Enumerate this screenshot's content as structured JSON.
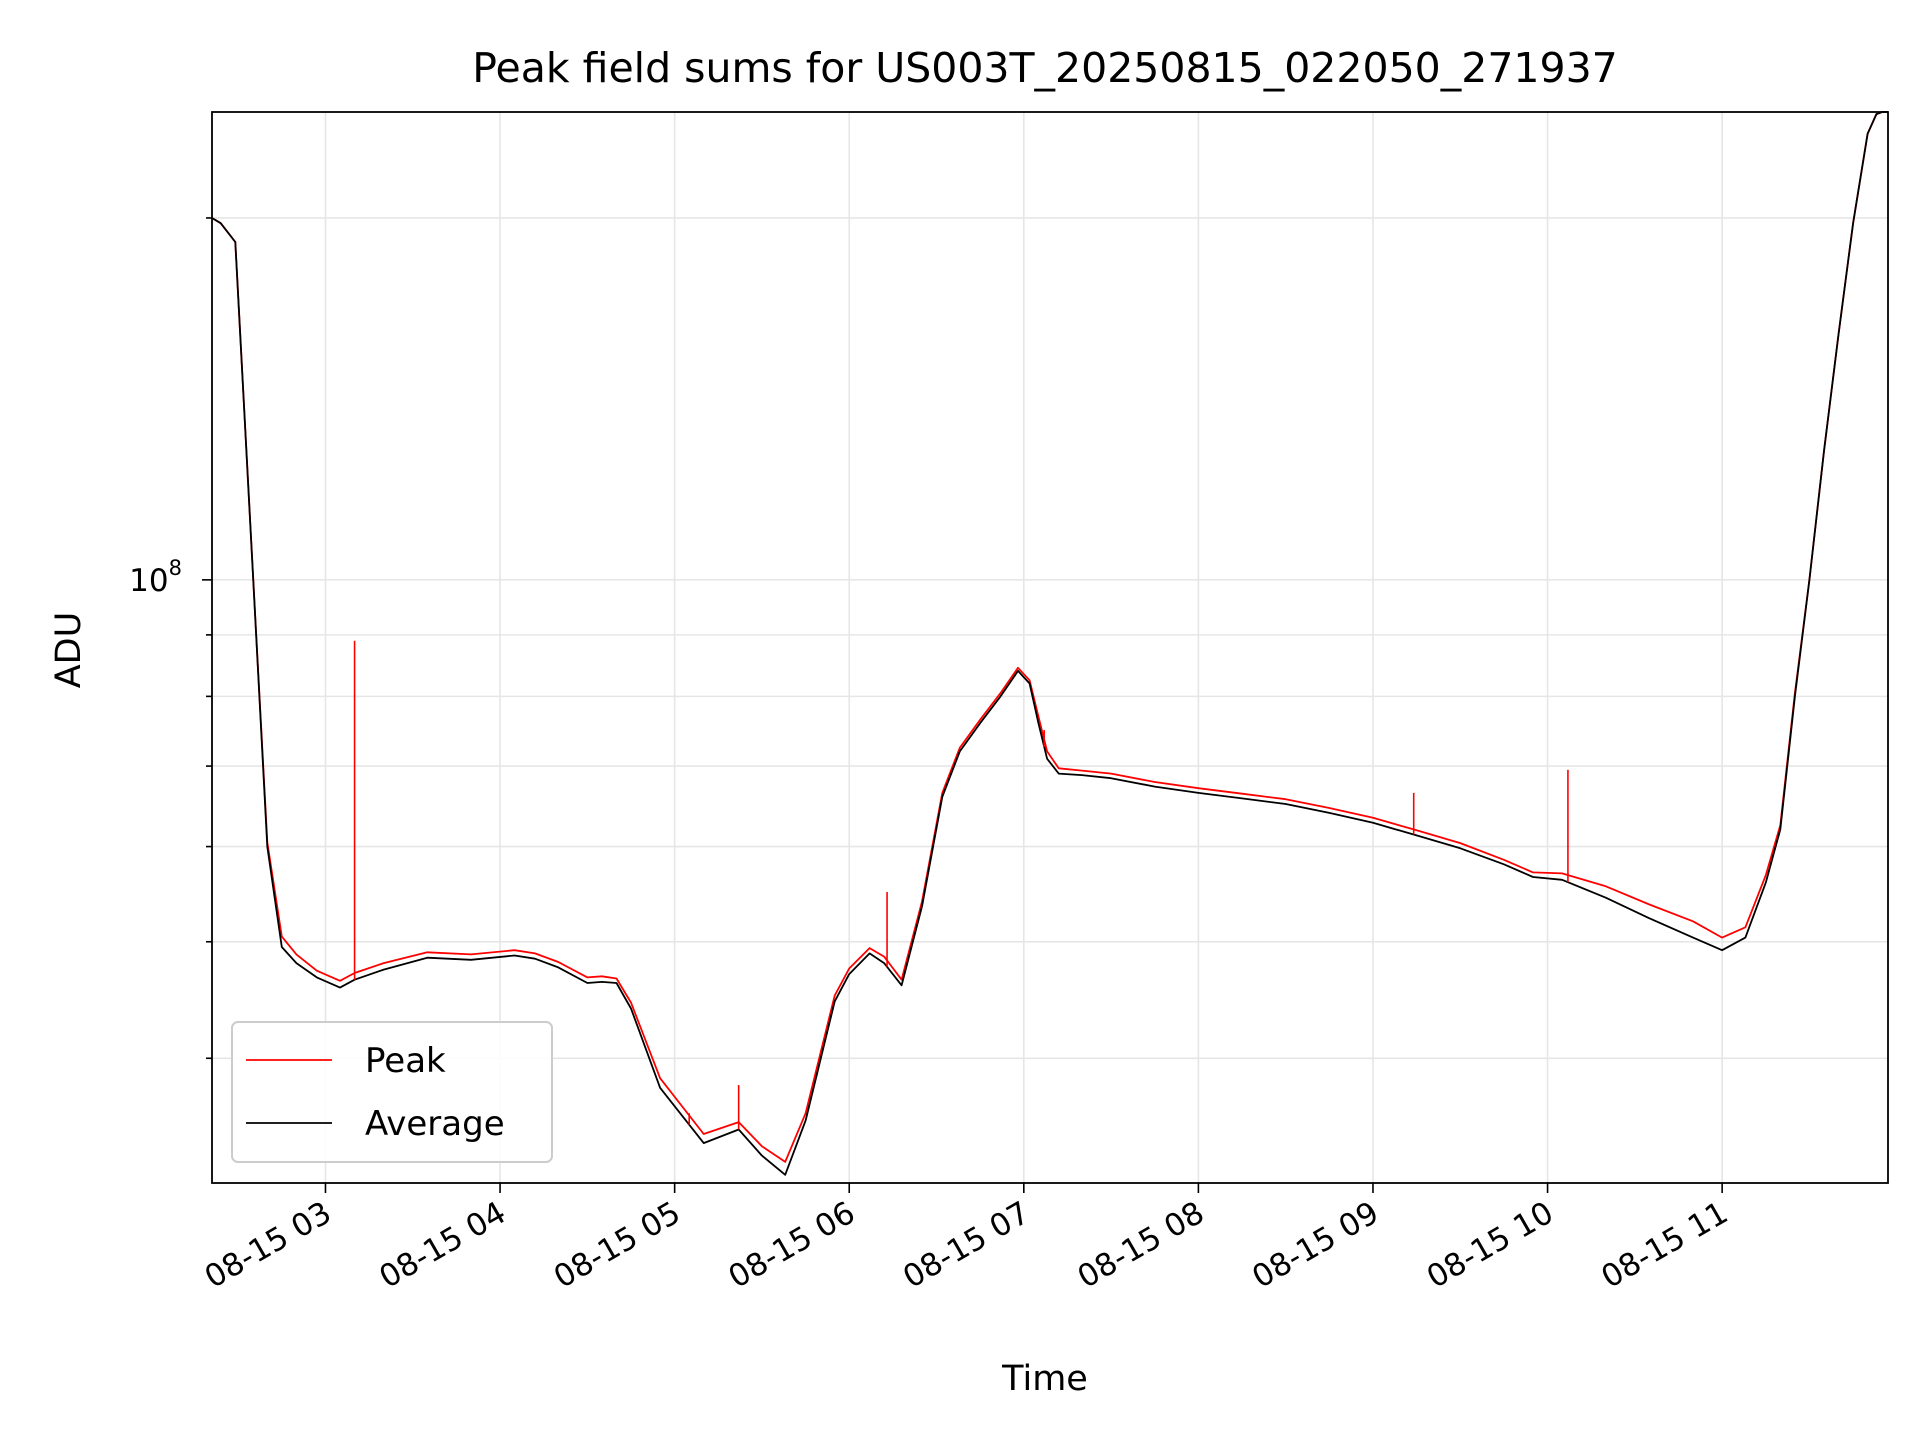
{
  "chart_data": {
    "type": "line",
    "title": "Peak field sums for US003T_20250815_022050_271937",
    "xlabel": "Time",
    "ylabel": "ADU",
    "yscale": "log",
    "xlim": [
      "2025-08-15 02:21",
      "2025-08-15 11:57"
    ],
    "ylim": [
      31500000,
      245000000
    ],
    "grid": true,
    "legend_position": "lower-left",
    "x_ticks": [
      "2025-08-15 03:00",
      "2025-08-15 04:00",
      "2025-08-15 05:00",
      "2025-08-15 06:00",
      "2025-08-15 07:00",
      "2025-08-15 08:00",
      "2025-08-15 09:00",
      "2025-08-15 10:00",
      "2025-08-15 11:00"
    ],
    "x_tick_labels": [
      "08-15 03",
      "08-15 04",
      "08-15 05",
      "08-15 06",
      "08-15 07",
      "08-15 08",
      "08-15 09",
      "08-15 10",
      "08-15 11"
    ],
    "y_tick_label_base": "10",
    "y_tick_label_exp": "8",
    "y_tick_value": 100000000,
    "series": [
      {
        "name": "Average",
        "color": "#000000",
        "x": [
          "2025-08-15 02:21",
          "2025-08-15 02:24",
          "2025-08-15 02:29",
          "2025-08-15 02:35",
          "2025-08-15 02:40",
          "2025-08-15 02:45",
          "2025-08-15 02:50",
          "2025-08-15 02:57",
          "2025-08-15 03:05",
          "2025-08-15 03:10",
          "2025-08-15 03:20",
          "2025-08-15 03:35",
          "2025-08-15 03:50",
          "2025-08-15 04:05",
          "2025-08-15 04:12",
          "2025-08-15 04:20",
          "2025-08-15 04:30",
          "2025-08-15 04:35",
          "2025-08-15 04:40",
          "2025-08-15 04:45",
          "2025-08-15 04:55",
          "2025-08-15 05:10",
          "2025-08-15 05:22",
          "2025-08-15 05:30",
          "2025-08-15 05:38",
          "2025-08-15 05:45",
          "2025-08-15 05:55",
          "2025-08-15 06:00",
          "2025-08-15 06:07",
          "2025-08-15 06:12",
          "2025-08-15 06:18",
          "2025-08-15 06:25",
          "2025-08-15 06:32",
          "2025-08-15 06:38",
          "2025-08-15 06:45",
          "2025-08-15 06:52",
          "2025-08-15 06:58",
          "2025-08-15 07:02",
          "2025-08-15 07:05",
          "2025-08-15 07:08",
          "2025-08-15 07:12",
          "2025-08-15 07:20",
          "2025-08-15 07:30",
          "2025-08-15 07:45",
          "2025-08-15 08:00",
          "2025-08-15 08:15",
          "2025-08-15 08:30",
          "2025-08-15 08:45",
          "2025-08-15 09:00",
          "2025-08-15 09:15",
          "2025-08-15 09:30",
          "2025-08-15 09:45",
          "2025-08-15 09:55",
          "2025-08-15 10:05",
          "2025-08-15 10:20",
          "2025-08-15 10:35",
          "2025-08-15 10:50",
          "2025-08-15 11:00",
          "2025-08-15 11:08",
          "2025-08-15 11:15",
          "2025-08-15 11:20",
          "2025-08-15 11:25",
          "2025-08-15 11:30",
          "2025-08-15 11:35",
          "2025-08-15 11:40",
          "2025-08-15 11:45",
          "2025-08-15 11:50",
          "2025-08-15 11:53",
          "2025-08-15 11:55",
          "2025-08-15 11:57"
        ],
        "values": [
          200000000,
          198000000,
          191000000,
          102000000,
          60000000,
          49500000,
          48000000,
          46700000,
          45800000,
          46500000,
          47400000,
          48500000,
          48300000,
          48700000,
          48400000,
          47600000,
          46200000,
          46300000,
          46200000,
          44000000,
          37800000,
          34000000,
          34900000,
          33200000,
          32000000,
          35500000,
          44600000,
          47000000,
          48900000,
          48000000,
          46000000,
          53500000,
          66000000,
          72000000,
          76000000,
          80000000,
          84000000,
          82000000,
          76000000,
          71000000,
          69000000,
          68800000,
          68400000,
          67300000,
          66500000,
          65800000,
          65100000,
          64000000,
          62800000,
          61300000,
          59800000,
          58000000,
          56600000,
          56300000,
          54400000,
          52300000,
          50400000,
          49200000,
          50400000,
          56000000,
          62000000,
          80000000,
          100000000,
          128000000,
          160000000,
          198000000,
          235000000,
          244000000,
          245000000,
          245000000
        ]
      },
      {
        "name": "Peak",
        "color": "#ff0000",
        "x": [
          "2025-08-15 02:21",
          "2025-08-15 02:24",
          "2025-08-15 02:29",
          "2025-08-15 02:35",
          "2025-08-15 02:40",
          "2025-08-15 02:45",
          "2025-08-15 02:50",
          "2025-08-15 02:57",
          "2025-08-15 03:05",
          "2025-08-15 03:10",
          "2025-08-15 03:20",
          "2025-08-15 03:35",
          "2025-08-15 03:50",
          "2025-08-15 04:05",
          "2025-08-15 04:12",
          "2025-08-15 04:20",
          "2025-08-15 04:30",
          "2025-08-15 04:35",
          "2025-08-15 04:40",
          "2025-08-15 04:45",
          "2025-08-15 04:55",
          "2025-08-15 05:10",
          "2025-08-15 05:22",
          "2025-08-15 05:30",
          "2025-08-15 05:38",
          "2025-08-15 05:45",
          "2025-08-15 05:55",
          "2025-08-15 06:00",
          "2025-08-15 06:07",
          "2025-08-15 06:12",
          "2025-08-15 06:18",
          "2025-08-15 06:25",
          "2025-08-15 06:32",
          "2025-08-15 06:38",
          "2025-08-15 06:45",
          "2025-08-15 06:52",
          "2025-08-15 06:58",
          "2025-08-15 07:02",
          "2025-08-15 07:05",
          "2025-08-15 07:08",
          "2025-08-15 07:12",
          "2025-08-15 07:20",
          "2025-08-15 07:30",
          "2025-08-15 07:45",
          "2025-08-15 08:00",
          "2025-08-15 08:15",
          "2025-08-15 08:30",
          "2025-08-15 08:45",
          "2025-08-15 09:00",
          "2025-08-15 09:15",
          "2025-08-15 09:30",
          "2025-08-15 09:45",
          "2025-08-15 09:55",
          "2025-08-15 10:05",
          "2025-08-15 10:20",
          "2025-08-15 10:35",
          "2025-08-15 10:50",
          "2025-08-15 11:00",
          "2025-08-15 11:08",
          "2025-08-15 11:15",
          "2025-08-15 11:20",
          "2025-08-15 11:25",
          "2025-08-15 11:30",
          "2025-08-15 11:35",
          "2025-08-15 11:40",
          "2025-08-15 11:45",
          "2025-08-15 11:50",
          "2025-08-15 11:53",
          "2025-08-15 11:55",
          "2025-08-15 11:57"
        ],
        "values": [
          200000000,
          198000000,
          191000000,
          102000000,
          60500000,
          50500000,
          48800000,
          47300000,
          46400000,
          47100000,
          48000000,
          49000000,
          48800000,
          49200000,
          48900000,
          48100000,
          46700000,
          46800000,
          46600000,
          44500000,
          38500000,
          34600000,
          35400000,
          33800000,
          32800000,
          36000000,
          45100000,
          47500000,
          49400000,
          48600000,
          46500000,
          54000000,
          66500000,
          72500000,
          76500000,
          80500000,
          84500000,
          82500000,
          77000000,
          72000000,
          69700000,
          69400000,
          69000000,
          67900000,
          67100000,
          66400000,
          65700000,
          64600000,
          63400000,
          61900000,
          60400000,
          58500000,
          57100000,
          57000000,
          55600000,
          53700000,
          52000000,
          50400000,
          51400000,
          56800000,
          62500000,
          80500000,
          100000000,
          128000000,
          160000000,
          198000000,
          235000000,
          244000000,
          245000000,
          245000000
        ]
      }
    ],
    "peak_spikes": [
      {
        "x": "2025-08-15 03:10",
        "value": 89000000
      },
      {
        "x": "2025-08-15 05:05",
        "value": 36000000
      },
      {
        "x": "2025-08-15 05:22",
        "value": 38000000
      },
      {
        "x": "2025-08-15 06:13",
        "value": 55000000
      },
      {
        "x": "2025-08-15 07:07",
        "value": 75000000
      },
      {
        "x": "2025-08-15 09:14",
        "value": 66500000
      },
      {
        "x": "2025-08-15 10:07",
        "value": 69500000
      }
    ]
  }
}
